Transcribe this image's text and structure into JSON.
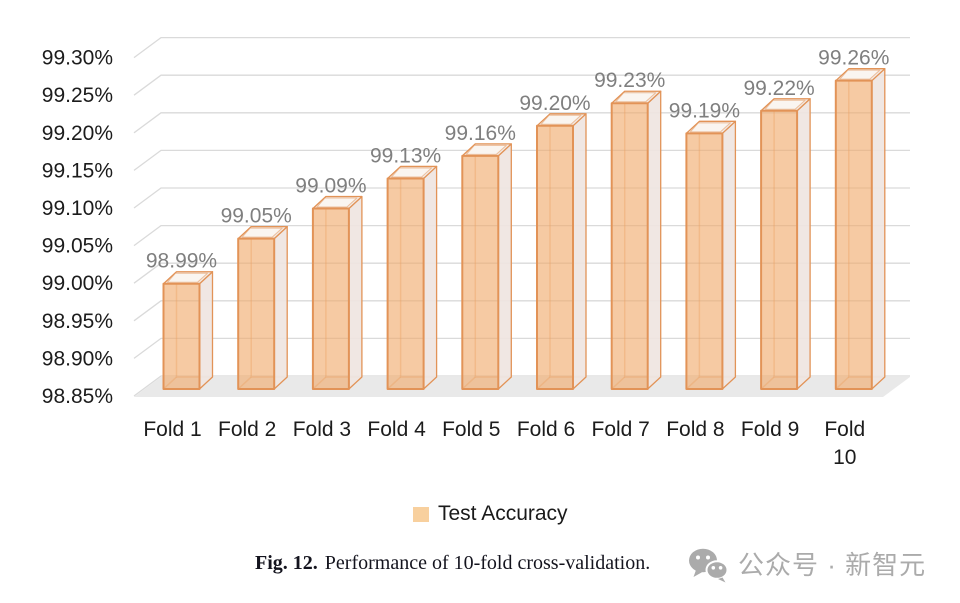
{
  "chart_data": {
    "type": "bar",
    "style": "3d-column",
    "title": "",
    "xlabel": "",
    "ylabel": "",
    "categories": [
      "Fold 1",
      "Fold 2",
      "Fold 3",
      "Fold 4",
      "Fold 5",
      "Fold 6",
      "Fold 7",
      "Fold 8",
      "Fold 9",
      "Fold 10"
    ],
    "series": [
      {
        "name": "Test Accuracy",
        "values": [
          98.99,
          99.05,
          99.09,
          99.13,
          99.16,
          99.2,
          99.23,
          99.19,
          99.22,
          99.26
        ]
      }
    ],
    "data_labels": [
      "98.99%",
      "99.05%",
      "99.09%",
      "99.13%",
      "99.16%",
      "99.20%",
      "99.23%",
      "99.19%",
      "99.22%",
      "99.26%"
    ],
    "y_axis": {
      "min": 98.85,
      "max": 99.3,
      "step": 0.05,
      "tick_labels": [
        "98.85%",
        "98.90%",
        "98.95%",
        "99.00%",
        "99.05%",
        "99.10%",
        "99.15%",
        "99.20%",
        "99.25%",
        "99.30%"
      ]
    },
    "grid": true,
    "legend": {
      "label": "Test Accuracy",
      "position": "bottom"
    },
    "colors": {
      "bar_fill": "#F0A96B",
      "bar_border": "#E29357",
      "side_face": "#EFE5E1",
      "top_face": "#F3EBE6",
      "grid": "#DADADA",
      "floor": "#E9E9E9",
      "data_label": "#7F7F7F",
      "axis_text": "#1C1C1C",
      "legend_swatch": "#F8D09E",
      "watermark": "#ABABAB"
    }
  },
  "caption": {
    "prefix": "Fig. 12.",
    "text": "Performance of 10-fold cross-validation."
  },
  "watermark": {
    "icon": "wechat-icon",
    "text": "公众号 · 新智元"
  }
}
